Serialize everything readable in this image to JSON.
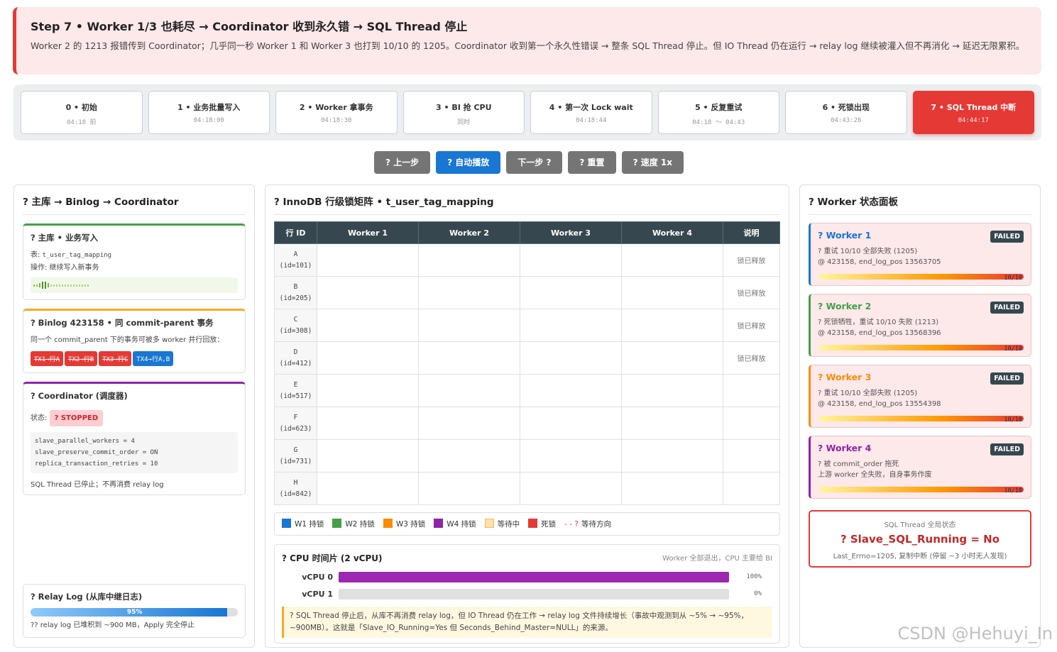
{
  "banner": {
    "title": "Step 7 • Worker 1/3 也耗尽 → Coordinator 收到永久错 → SQL Thread 停止",
    "desc": "Worker 2 的 1213 报错传到 Coordinator；几乎同一秒 Worker 1 和 Worker 3 也打到 10/10 的 1205。Coordinator 收到第一个永久性错误 → 整条 SQL Thread 停止。但 IO Thread 仍在运行 → relay log 继续被灌入但不再消化 → 延迟无限累积。"
  },
  "steps": [
    {
      "label": "0 • 初始",
      "time": "04:18 前"
    },
    {
      "label": "1 • 业务批量写入",
      "time": "04:18:00"
    },
    {
      "label": "2 • Worker 拿事务",
      "time": "04:18:30"
    },
    {
      "label": "3 • BI 抢 CPU",
      "time": "同时"
    },
    {
      "label": "4 • 第一次 Lock wait",
      "time": "04:18:44"
    },
    {
      "label": "5 • 反复重试",
      "time": "04:18 ～ 04:43"
    },
    {
      "label": "6 • 死锁出现",
      "time": "04:43:26"
    },
    {
      "label": "7 • SQL Thread 中断",
      "time": "04:44:17"
    }
  ],
  "controls": {
    "prev": "? 上一步",
    "auto": "? 自动播放",
    "next": "下一步 ?",
    "reset": "? 重置",
    "speed": "? 速度 1x"
  },
  "left": {
    "title": "? 主库 → Binlog → Coordinator",
    "master": {
      "title": "? 主库 • 业务写入",
      "table_label": "表: ",
      "table": "t_user_tag_mapping",
      "op": "操作: 继续写入新事务"
    },
    "binlog": {
      "title": "? Binlog 423158 • 同 commit-parent 事务",
      "desc": "同一个 commit_parent 下的事务可被多 worker 并行回放：",
      "chips": [
        "TX1→行A",
        "TX2→行B",
        "TX3→行C",
        "TX4→行A,B"
      ]
    },
    "coord": {
      "title": "? Coordinator (调度器)",
      "status_label": "状态:",
      "status": "? STOPPED",
      "code": [
        "slave_parallel_workers = 4",
        "slave_preserve_commit_order = ON",
        "replica_transaction_retries = 10"
      ],
      "footer": "SQL Thread 已停止；不再消费 relay log"
    },
    "relay": {
      "title": "? Relay Log (从库中继日志)",
      "pct_label": "95%",
      "pct": 0.95,
      "footer": "?? relay log 已堆积到 ~900 MB，Apply 完全停止"
    }
  },
  "matrix": {
    "title": "? InnoDB 行级锁矩阵 • t_user_tag_mapping",
    "headers": [
      "行 ID",
      "Worker 1",
      "Worker 2",
      "Worker 3",
      "Worker 4",
      "说明"
    ],
    "rows": [
      {
        "id": "A",
        "sub": "(id=101)",
        "note": "锁已释放"
      },
      {
        "id": "B",
        "sub": "(id=205)",
        "note": "锁已释放"
      },
      {
        "id": "C",
        "sub": "(id=308)",
        "note": "锁已释放"
      },
      {
        "id": "D",
        "sub": "(id=412)",
        "note": "锁已释放"
      },
      {
        "id": "E",
        "sub": "(id=517)",
        "note": ""
      },
      {
        "id": "F",
        "sub": "(id=623)",
        "note": ""
      },
      {
        "id": "G",
        "sub": "(id=731)",
        "note": ""
      },
      {
        "id": "H",
        "sub": "(id=842)",
        "note": ""
      }
    ],
    "legend": [
      {
        "label": "W1 持锁",
        "color": "#1976d2"
      },
      {
        "label": "W2 持锁",
        "color": "#43a047"
      },
      {
        "label": "W3 持锁",
        "color": "#fb8c00"
      },
      {
        "label": "W4 持锁",
        "color": "#8e24aa"
      },
      {
        "label": "等待中",
        "color": "#ffe0b2"
      },
      {
        "label": "死锁",
        "color": "#e53935"
      }
    ],
    "legend_arrow": "- - ?",
    "legend_arrow_label": "等待方向"
  },
  "cpu": {
    "title": "? CPU 时间片 (2 vCPU)",
    "hint": "Worker 全部退出，CPU 主要给 BI",
    "rows": [
      {
        "label": "vCPU 0",
        "pct": "100%",
        "value": 1.0
      },
      {
        "label": "vCPU 1",
        "pct": "0%",
        "value": 0.0
      }
    ],
    "note": "? SQL Thread 停止后，从库不再消费 relay log，但 IO Thread 仍在工作 → relay log 文件持续增长（事故中观测到从 ~5% → ~95%，~900MB）。这就是「Slave_IO_Running=Yes 但 Seconds_Behind_Master=NULL」的来源。"
  },
  "workers": {
    "title": "? Worker 状态面板",
    "items": [
      {
        "name": "? Worker 1",
        "badge": "FAILED",
        "l1": "? 重试 10/10 全部失败 (1205)",
        "l2": "@ 423158, end_log_pos 13563705",
        "progress": "10/10",
        "color": "#1976d2"
      },
      {
        "name": "? Worker 2",
        "badge": "FAILED",
        "l1": "? 死锁牺牲，重试 10/10 失败 (1213)",
        "l2": "@ 423158, end_log_pos 13568396",
        "progress": "10/10",
        "color": "#43a047"
      },
      {
        "name": "? Worker 3",
        "badge": "FAILED",
        "l1": "? 重试 10/10 全部失败 (1205)",
        "l2": "@ 423158, end_log_pos 13554398",
        "progress": "10/10",
        "color": "#fb8c00"
      },
      {
        "name": "? Worker 4",
        "badge": "FAILED",
        "l1": "? 被 commit_order 拖死",
        "l2": "上游 worker 全失败，自身事务作废",
        "progress": "10/10",
        "color": "#8e24aa"
      }
    ],
    "global": {
      "label": "SQL Thread 全局状态",
      "value": "? Slave_SQL_Running = No",
      "footer": "Last_Errno=1205, 复制中断 (停留 ~3 小时无人发现)"
    }
  },
  "watermark": "CSDN @Hehuyi_In"
}
